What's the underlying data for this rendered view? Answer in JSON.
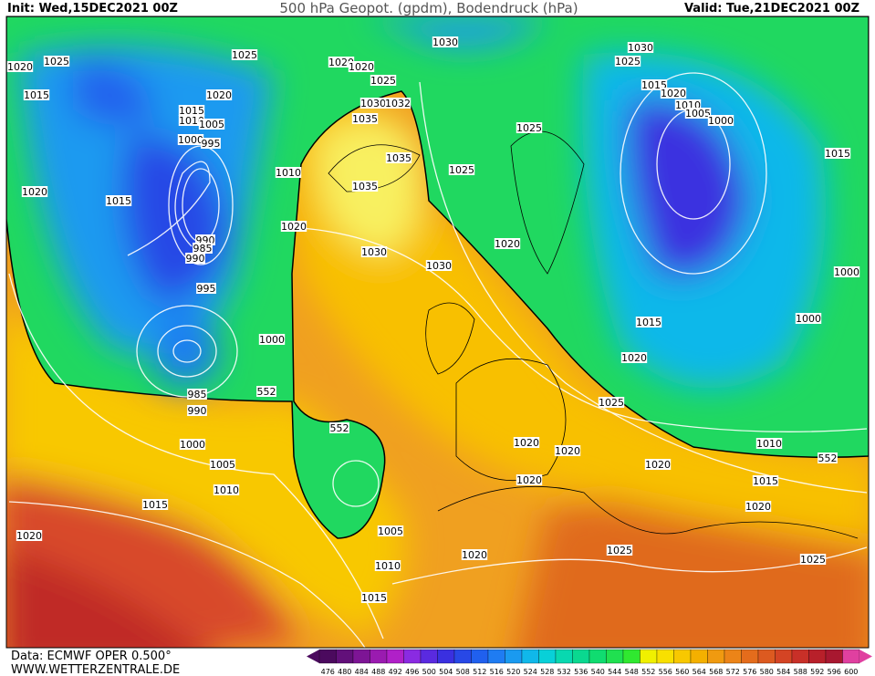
{
  "header": {
    "init": "Init: Wed,15DEC2021 00Z",
    "title": "500 hPa Geopot. (gpdm), Bodendruck (hPa)",
    "valid": "Valid: Tue,21DEC2021 00Z"
  },
  "footer": {
    "data": "Data: ECMWF OPER 0.500°",
    "site": "WWW.WETTERZENTRALE.DE"
  },
  "scale": {
    "values": [
      476,
      480,
      484,
      488,
      492,
      496,
      500,
      504,
      508,
      512,
      516,
      520,
      524,
      528,
      532,
      536,
      540,
      544,
      548,
      552,
      556,
      560,
      564,
      568,
      572,
      576,
      580,
      584,
      588,
      592,
      596,
      600
    ],
    "colors": [
      "#4b0a5e",
      "#62107a",
      "#7d1595",
      "#9a1bb0",
      "#b020c8",
      "#8a2be2",
      "#5a2ae0",
      "#3a30e0",
      "#2848e6",
      "#2060ee",
      "#1f7cf2",
      "#1a9af0",
      "#10b8ea",
      "#08d0d8",
      "#08d8b0",
      "#0ad890",
      "#10dc70",
      "#20e050",
      "#30e830",
      "#f0f000",
      "#f8e000",
      "#f8c800",
      "#f4b000",
      "#f09a10",
      "#ec8418",
      "#e46c1c",
      "#dc5a20",
      "#d44424",
      "#c83028",
      "#b8202a",
      "#a81830",
      "#e040a0"
    ]
  },
  "isobar_labels": [
    "1020",
    "1025",
    "1015",
    "1020",
    "1015",
    "1025",
    "1020",
    "1015",
    "1010",
    "1005",
    "1000",
    "995",
    "990",
    "985",
    "990",
    "995",
    "1000",
    "985",
    "990",
    "552",
    "552",
    "1000",
    "1005",
    "1010",
    "1015",
    "1020",
    "1030",
    "1020",
    "1020",
    "1025",
    "1030",
    "1032",
    "1035",
    "1035",
    "1035",
    "1010",
    "1020",
    "1030",
    "1030",
    "1025",
    "1025",
    "1020",
    "1030",
    "1025",
    "1015",
    "1020",
    "1010",
    "1005",
    "1000",
    "1015",
    "1000",
    "1000",
    "1015",
    "1020",
    "1025",
    "1020",
    "1020",
    "1020",
    "1010",
    "552",
    "1015",
    "1020",
    "1020",
    "1005",
    "1010",
    "1015",
    "1020",
    "1025",
    "1025"
  ]
}
